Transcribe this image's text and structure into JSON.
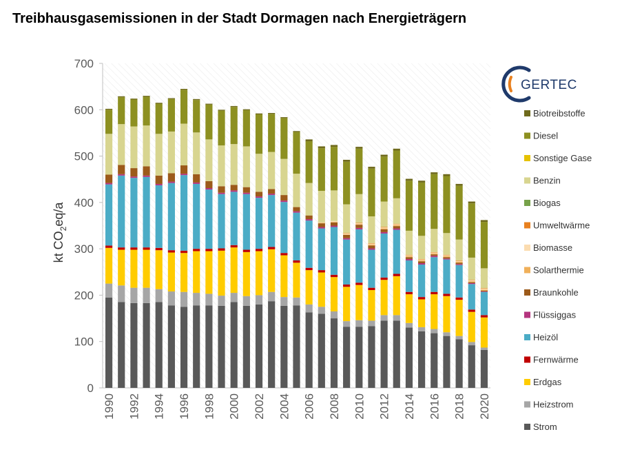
{
  "logo": {
    "text": "GERTEC"
  },
  "chart_data": {
    "type": "bar",
    "stacked": true,
    "title": "Treibhausgasemissionen in der Stadt Dormagen nach Energieträgern",
    "ylabel_main": "kt CO",
    "ylabel_sub": "2",
    "ylabel_tail": "eq/a",
    "xlabel": "",
    "ylim": [
      0,
      700
    ],
    "yticks": [
      0,
      100,
      200,
      300,
      400,
      500,
      600,
      700
    ],
    "grid": false,
    "legend_position": "right",
    "categories": [
      "1990",
      "1991",
      "1992",
      "1993",
      "1994",
      "1995",
      "1996",
      "1997",
      "1998",
      "1999",
      "2000",
      "2001",
      "2002",
      "2003",
      "2004",
      "2005",
      "2006",
      "2007",
      "2008",
      "2009",
      "2010",
      "2011",
      "2012",
      "2013",
      "2014",
      "2015",
      "2016",
      "2017",
      "2018",
      "2019",
      "2020"
    ],
    "xtick_labels": [
      "1990",
      "1992",
      "1994",
      "1996",
      "1998",
      "2000",
      "2002",
      "2004",
      "2006",
      "2008",
      "2010",
      "2012",
      "2014",
      "2016",
      "2018",
      "2020"
    ],
    "series": [
      {
        "name": "Strom",
        "color": "#595959",
        "values": [
          195,
          185,
          183,
          183,
          185,
          178,
          175,
          178,
          178,
          177,
          185,
          177,
          180,
          187,
          177,
          178,
          163,
          160,
          150,
          132,
          132,
          133,
          145,
          145,
          130,
          122,
          118,
          112,
          105,
          92,
          82
        ]
      },
      {
        "name": "Heizstrom",
        "color": "#a6a6a6",
        "values": [
          30,
          36,
          33,
          33,
          28,
          30,
          32,
          27,
          25,
          22,
          20,
          21,
          20,
          20,
          19,
          17,
          17,
          15,
          15,
          12,
          14,
          12,
          12,
          12,
          10,
          9,
          9,
          8,
          7,
          7,
          5
        ]
      },
      {
        "name": "Erdgas",
        "color": "#ffcc00",
        "values": [
          77,
          77,
          82,
          82,
          84,
          84,
          84,
          90,
          92,
          97,
          98,
          95,
          95,
          92,
          90,
          75,
          74,
          74,
          74,
          74,
          76,
          66,
          76,
          84,
          62,
          60,
          75,
          78,
          78,
          65,
          65
        ]
      },
      {
        "name": "Fernwärme",
        "color": "#c00000",
        "values": [
          5,
          5,
          5,
          5,
          5,
          5,
          5,
          5,
          5,
          5,
          5,
          5,
          5,
          5,
          5,
          5,
          5,
          5,
          5,
          5,
          5,
          5,
          5,
          5,
          5,
          5,
          5,
          5,
          5,
          5,
          5
        ]
      },
      {
        "name": "Heizöl",
        "color": "#4bacc6",
        "values": [
          132,
          155,
          150,
          152,
          135,
          145,
          163,
          140,
          128,
          117,
          115,
          120,
          110,
          112,
          110,
          103,
          102,
          90,
          103,
          97,
          115,
          82,
          95,
          95,
          68,
          70,
          75,
          74,
          70,
          55,
          50
        ]
      },
      {
        "name": "Flüssiggas",
        "color": "#b5357f",
        "values": [
          3,
          3,
          3,
          3,
          3,
          3,
          3,
          3,
          3,
          3,
          3,
          3,
          3,
          3,
          3,
          3,
          3,
          3,
          3,
          3,
          3,
          3,
          3,
          3,
          3,
          3,
          3,
          2,
          2,
          2,
          1
        ]
      },
      {
        "name": "Braunkohle",
        "color": "#9c5a1a",
        "values": [
          18,
          20,
          18,
          20,
          18,
          18,
          18,
          18,
          15,
          14,
          12,
          12,
          10,
          10,
          12,
          9,
          8,
          8,
          7,
          7,
          7,
          6,
          6,
          5,
          4,
          4,
          3,
          3,
          3,
          2,
          2
        ]
      },
      {
        "name": "Solarthermie",
        "color": "#f0b05a",
        "values": [
          0,
          0,
          0,
          0,
          0,
          0,
          0,
          0,
          0,
          0,
          0,
          0,
          0,
          0,
          0,
          0,
          0,
          1,
          1,
          1,
          1,
          2,
          2,
          2,
          2,
          2,
          2,
          2,
          2,
          2,
          2
        ]
      },
      {
        "name": "Biomasse",
        "color": "#fbdcb0",
        "values": [
          0,
          0,
          0,
          0,
          0,
          0,
          0,
          0,
          0,
          0,
          0,
          0,
          0,
          0,
          0,
          0,
          0,
          1,
          2,
          2,
          2,
          2,
          2,
          2,
          2,
          2,
          2,
          2,
          2,
          2,
          2
        ]
      },
      {
        "name": "Umweltwärme",
        "color": "#e8801f",
        "values": [
          0,
          0,
          0,
          0,
          0,
          0,
          0,
          0,
          0,
          0,
          0,
          0,
          0,
          0,
          0,
          0,
          0,
          0,
          0,
          1,
          1,
          1,
          1,
          1,
          1,
          1,
          1,
          1,
          1,
          1,
          1
        ]
      },
      {
        "name": "Biogas",
        "color": "#77a24a",
        "values": [
          0,
          0,
          0,
          0,
          0,
          0,
          0,
          0,
          0,
          0,
          0,
          0,
          0,
          0,
          0,
          0,
          0,
          0,
          0,
          0,
          0,
          0,
          0,
          0,
          0,
          0,
          0,
          0,
          0,
          0,
          0
        ]
      },
      {
        "name": "Benzin",
        "color": "#d8d590",
        "values": [
          88,
          88,
          90,
          88,
          90,
          90,
          90,
          90,
          90,
          88,
          88,
          88,
          82,
          80,
          78,
          72,
          70,
          68,
          66,
          62,
          62,
          58,
          55,
          55,
          52,
          50,
          50,
          47,
          45,
          48,
          43
        ]
      },
      {
        "name": "Sonstige Gase",
        "color": "#e6c200",
        "values": [
          0,
          0,
          0,
          0,
          0,
          0,
          0,
          0,
          0,
          0,
          0,
          0,
          0,
          0,
          0,
          0,
          0,
          0,
          0,
          0,
          0,
          0,
          0,
          0,
          0,
          0,
          0,
          0,
          0,
          0,
          0
        ]
      },
      {
        "name": "Diesel",
        "color": "#8d9021",
        "values": [
          52,
          58,
          58,
          62,
          65,
          70,
          73,
          70,
          75,
          75,
          80,
          78,
          85,
          82,
          88,
          90,
          90,
          92,
          94,
          92,
          98,
          103,
          97,
          103,
          108,
          115,
          118,
          123,
          116,
          117,
          100
        ]
      },
      {
        "name": "Biotreibstoffe",
        "color": "#6f6a1c",
        "values": [
          2,
          2,
          2,
          2,
          2,
          2,
          2,
          2,
          2,
          2,
          2,
          2,
          2,
          2,
          2,
          2,
          4,
          4,
          4,
          4,
          4,
          4,
          4,
          4,
          4,
          4,
          4,
          4,
          4,
          4,
          4
        ]
      }
    ],
    "legend_order": [
      "Biotreibstoffe",
      "Diesel",
      "Sonstige Gase",
      "Benzin",
      "Biogas",
      "Umweltwärme",
      "Biomasse",
      "Solarthermie",
      "Braunkohle",
      "Flüssiggas",
      "Heizöl",
      "Fernwärme",
      "Erdgas",
      "Heizstrom",
      "Strom"
    ]
  }
}
